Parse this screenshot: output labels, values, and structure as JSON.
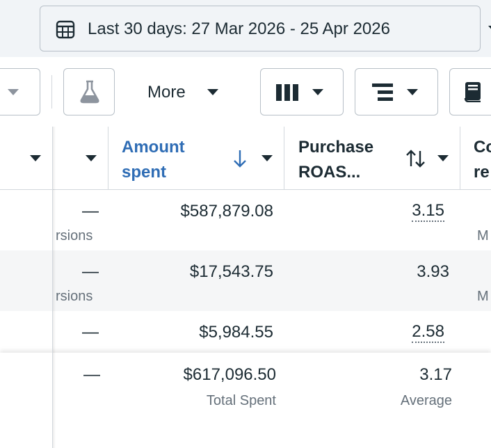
{
  "date_range": {
    "label": "Last 30 days: 27 Mar 2026 - 25 Apr 2026"
  },
  "toolbar": {
    "more_label": "More"
  },
  "columns": {
    "amount_spent": {
      "line1": "Amount",
      "line2": "spent",
      "color": "#2f6db5"
    },
    "purchase_roas": {
      "line1": "Purchase",
      "line2": "ROAS..."
    },
    "cut_col": {
      "line1": "Co",
      "line2": "re"
    }
  },
  "rows": [
    {
      "dash": "—",
      "sub": "rsions",
      "amount": "$587,879.08",
      "roas": "3.15",
      "roas_dotted": true,
      "cut": "M"
    },
    {
      "dash": "—",
      "sub": "rsions",
      "amount": "$17,543.75",
      "roas": "3.93",
      "roas_dotted": false,
      "cut": "M"
    },
    {
      "dash": "—",
      "sub": "",
      "amount": "$5,984.55",
      "roas": "2.58",
      "roas_dotted": true,
      "cut": ""
    }
  ],
  "totals": {
    "dash": "—",
    "amount": "$617,096.50",
    "amount_sub": "Total Spent",
    "roas": "3.17",
    "roas_sub": "Average"
  }
}
